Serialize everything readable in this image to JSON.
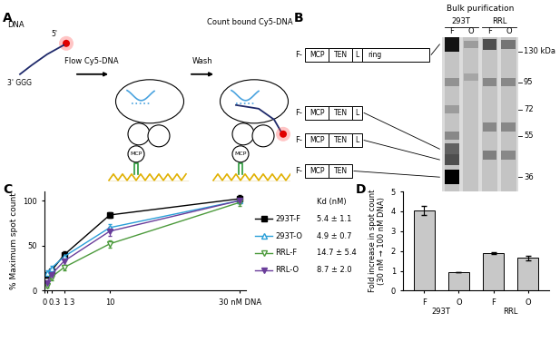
{
  "panel_labels": [
    "A",
    "B",
    "C",
    "D"
  ],
  "diagram": {
    "dna": "DNA",
    "five_prime": "5'",
    "three_prime": "3' GGG",
    "step1": "Flow Cy5-DNA",
    "step2": "Wash",
    "result": "Count bound Cy5-DNA",
    "mcp": "MCP"
  },
  "gel": {
    "title": "Bulk purification",
    "lanes": [
      "F",
      "O",
      "F",
      "O"
    ],
    "lane_groups": [
      "293T",
      "293T",
      "RRL",
      "RRL"
    ],
    "ylim": [
      27,
      150
    ],
    "markers": [
      {
        "value": 130,
        "label": "130 kDa"
      },
      95,
      72,
      55,
      36
    ],
    "constructs": [
      {
        "tag": "F-",
        "boxes": [
          "MCP",
          "TEN",
          "L",
          "ring"
        ],
        "kda": 140
      },
      {
        "tag": "F-",
        "boxes": [
          "MCP",
          "TEN",
          "L"
        ],
        "kda": 48
      },
      {
        "tag": "F-",
        "boxes": [
          "MCP",
          "TEN",
          "L"
        ],
        "kda": 43
      },
      {
        "tag": "F-",
        "boxes": [
          "MCP",
          "TEN"
        ],
        "kda": 36
      }
    ],
    "bands": [
      {
        "lane": 0,
        "kda": 140,
        "intensity": 0.9
      },
      {
        "lane": 0,
        "kda": 95,
        "intensity": 0.25
      },
      {
        "lane": 0,
        "kda": 72,
        "intensity": 0.2
      },
      {
        "lane": 0,
        "kda": 55,
        "intensity": 0.3
      },
      {
        "lane": 0,
        "kda": 48,
        "intensity": 0.5
      },
      {
        "lane": 0,
        "kda": 43,
        "intensity": 0.6
      },
      {
        "lane": 0,
        "kda": 36,
        "intensity": 1.0
      },
      {
        "lane": 1,
        "kda": 140,
        "intensity": 0.2
      },
      {
        "lane": 1,
        "kda": 100,
        "intensity": 0.15
      },
      {
        "lane": 2,
        "kda": 140,
        "intensity": 0.6
      },
      {
        "lane": 2,
        "kda": 95,
        "intensity": 0.3
      },
      {
        "lane": 2,
        "kda": 60,
        "intensity": 0.3
      },
      {
        "lane": 2,
        "kda": 45,
        "intensity": 0.35
      },
      {
        "lane": 3,
        "kda": 140,
        "intensity": 0.4
      },
      {
        "lane": 3,
        "kda": 95,
        "intensity": 0.3
      },
      {
        "lane": 3,
        "kda": 60,
        "intensity": 0.3
      },
      {
        "lane": 3,
        "kda": 45,
        "intensity": 0.3
      }
    ]
  },
  "chart_data": [
    {
      "type": "line",
      "y_label": "% Maximum spot count",
      "x": [
        0.3,
        1,
        3,
        10,
        30
      ],
      "xlim": [
        0,
        31
      ],
      "ylim": [
        0,
        110
      ],
      "xticks": [
        0,
        0.3,
        1,
        3,
        10,
        {
          "value": 30,
          "label": "30 nM DNA"
        }
      ],
      "yticks": [
        0,
        50,
        100
      ],
      "grid": false,
      "kd_header": "Kd (nM)",
      "series": [
        {
          "name": "293T-F",
          "color": "#000000",
          "marker": "square",
          "line_style": "solid",
          "values": [
            18,
            22,
            40,
            84,
            102
          ],
          "errors": [
            3,
            3,
            4,
            3,
            4
          ],
          "kd": "5.4 ± 1.1"
        },
        {
          "name": "293T-O",
          "color": "#2a9fd8",
          "marker": "open_triangle_up",
          "line_style": "solid",
          "values": [
            20,
            25,
            38,
            70,
            100
          ],
          "errors": [
            3,
            3,
            4,
            4,
            3
          ],
          "kd": "4.9 ± 0.7"
        },
        {
          "name": "RRL-F",
          "color": "#4c9a3c",
          "marker": "open_triangle_down",
          "line_style": "solid",
          "values": [
            5,
            15,
            26,
            52,
            98
          ],
          "errors": [
            2,
            3,
            3,
            4,
            4
          ],
          "kd": "14.7 ± 5.4"
        },
        {
          "name": "RRL-O",
          "color": "#6a3d9a",
          "marker": "triangle_down",
          "line_style": "solid",
          "values": [
            8,
            18,
            33,
            66,
            100
          ],
          "errors": [
            2,
            3,
            4,
            5,
            3
          ],
          "kd": "8.7 ± 2.0"
        }
      ]
    },
    {
      "type": "bar",
      "y_label": "Fold increase in spot count\n(30 nM → 100 nM DNA)",
      "categories": [
        "F",
        "O",
        "F",
        "O"
      ],
      "groups": [
        "293T",
        "293T",
        "RRL",
        "RRL"
      ],
      "values": [
        4.05,
        0.95,
        1.9,
        1.65
      ],
      "errors": [
        0.22,
        0,
        0.06,
        0.12
      ],
      "color": "#c8c8c8",
      "ylim": [
        0,
        5
      ],
      "yticks": [
        0,
        1,
        2,
        3,
        4,
        5
      ],
      "grid": false
    }
  ]
}
